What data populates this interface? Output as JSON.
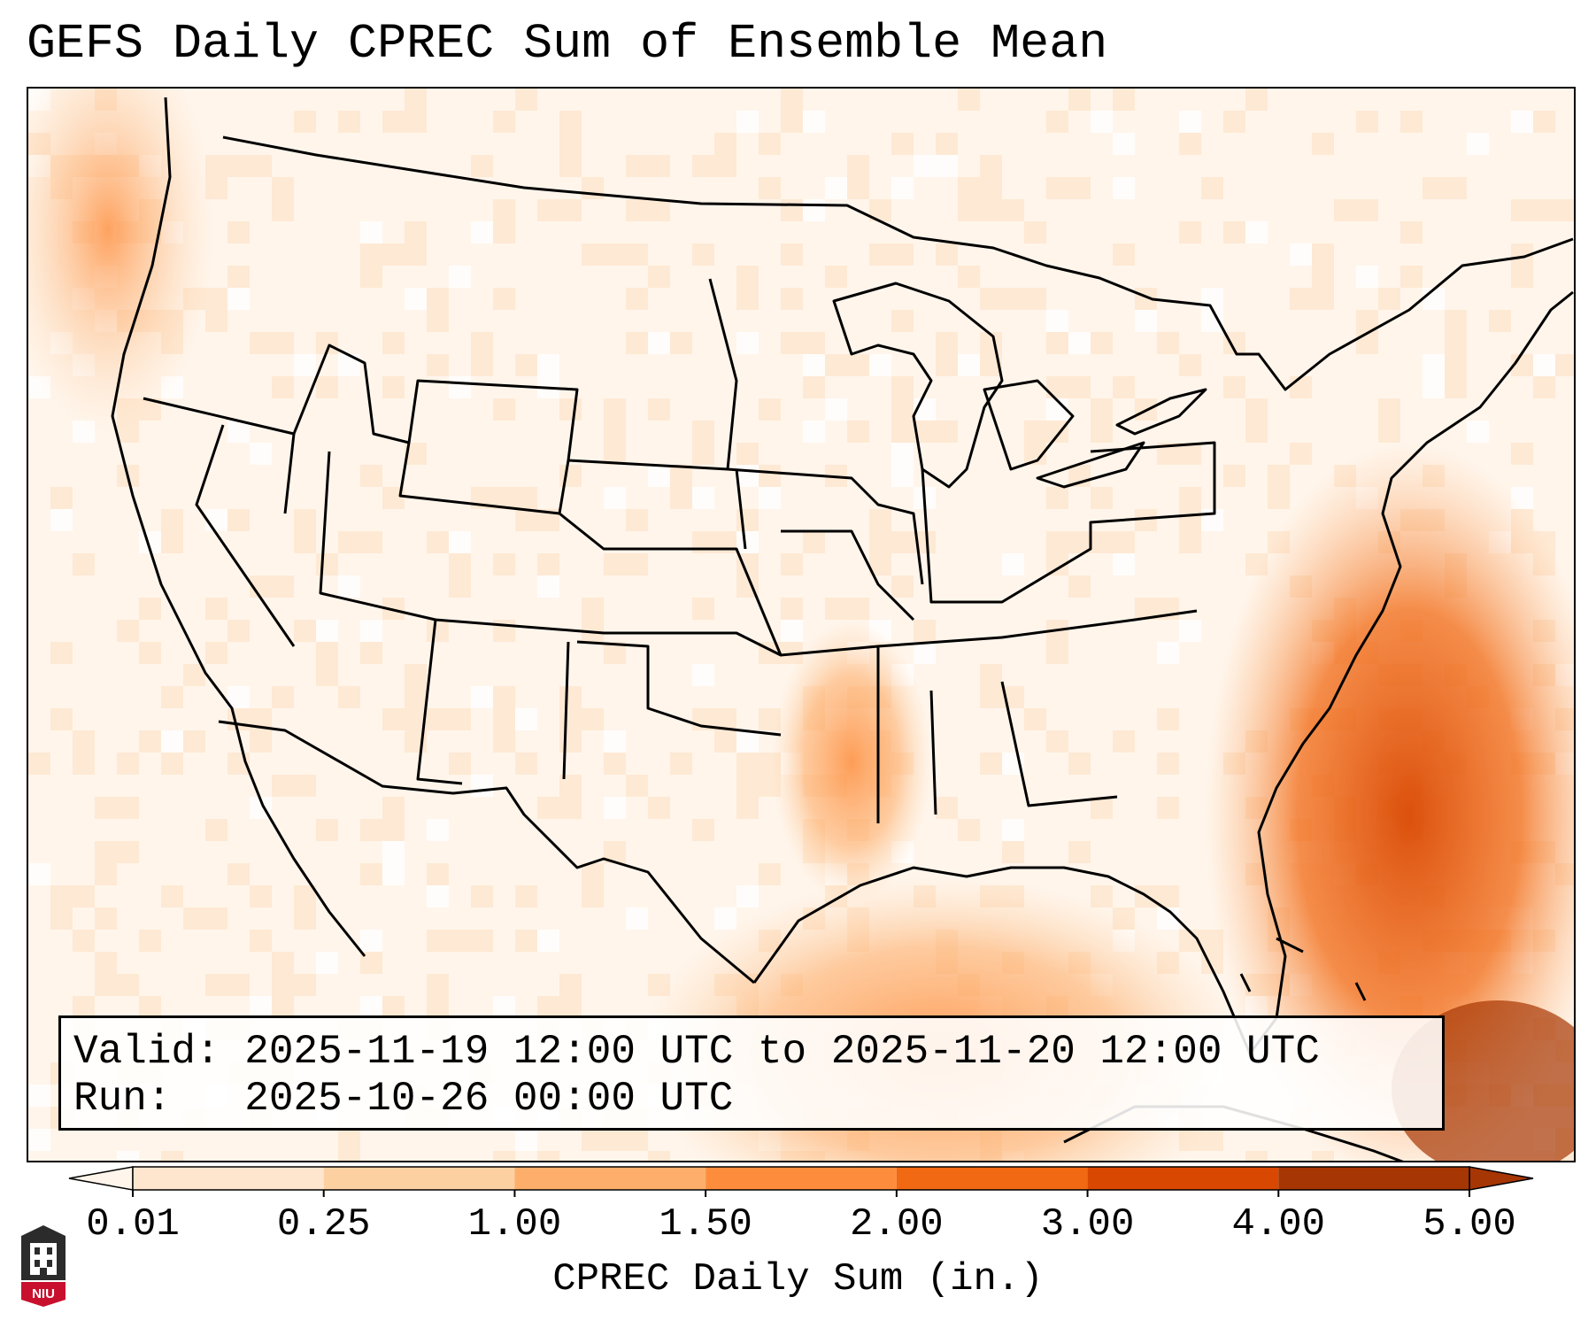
{
  "title": "GEFS Daily CPREC Sum of Ensemble Mean",
  "info": {
    "valid_label": "Valid:",
    "valid_value": "2025-11-19 12:00 UTC to 2025-11-20 12:00 UTC",
    "run_label": "Run:",
    "run_value": "2025-10-26 00:00 UTC"
  },
  "colorbar": {
    "label": "CPREC Daily Sum (in.)",
    "ticks": [
      "0.01",
      "0.25",
      "1.00",
      "1.50",
      "2.00",
      "3.00",
      "4.00",
      "5.00"
    ],
    "colors": [
      "#fff5eb",
      "#fee6ce",
      "#fdd0a2",
      "#fdae6b",
      "#fd8d3c",
      "#f16913",
      "#d94801",
      "#a63603"
    ],
    "extend": "both"
  },
  "logo": {
    "text": "NIU",
    "icon": "university-tower-icon",
    "colors": {
      "dark": "#2b2b2b",
      "red": "#c8102e"
    }
  },
  "map": {
    "projection": "lambert-conformal",
    "region": "CONUS",
    "features": [
      "state borders",
      "coastlines",
      "country borders",
      "great lakes"
    ]
  }
}
